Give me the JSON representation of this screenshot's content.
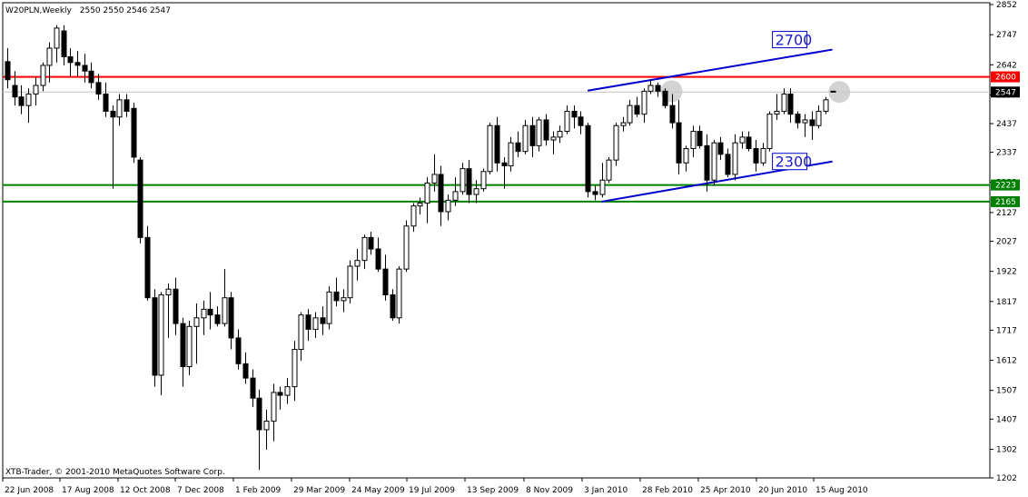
{
  "header": {
    "symbol_timeframe": "W20PLN,Weekly",
    "ohlc": "2550 2550 2546 2547"
  },
  "footer": {
    "copyright": "XTB-Trader, © 2001-2010 MetaQuotes Software Corp."
  },
  "colors": {
    "candle_outline": "#000000",
    "bull_fill": "#ffffff",
    "bear_fill": "#000000",
    "resistance_red": "#ff0000",
    "support_green": "#008000",
    "trendline_blue": "#0000cc",
    "label_blue": "#1a1acc",
    "current_price_line": "#c0c0c0",
    "highlight_circle": "#c8c8c8"
  },
  "chart_data": {
    "type": "candlestick",
    "ylim": [
      1202,
      2852
    ],
    "y_ticks": [
      2852,
      2747,
      2642,
      2537,
      2437,
      2337,
      2233,
      2127,
      2027,
      1922,
      1817,
      1717,
      1612,
      1507,
      1407,
      1302,
      1202
    ],
    "x_ticks": [
      "22 Jun 2008",
      "17 Aug 2008",
      "12 Oct 2008",
      "7 Dec 2008",
      "1 Feb 2009",
      "29 Mar 2009",
      "24 May 2009",
      "19 Jul 2009",
      "13 Sep 2009",
      "8 Nov 2009",
      "3 Jan 2010",
      "28 Feb 2010",
      "25 Apr 2010",
      "20 Jun 2010",
      "15 Aug 2010"
    ],
    "candles": [
      [
        2653,
        2700,
        2560,
        2590
      ],
      [
        2570,
        2620,
        2500,
        2530
      ],
      [
        2530,
        2570,
        2470,
        2500
      ],
      [
        2500,
        2560,
        2440,
        2540
      ],
      [
        2540,
        2600,
        2500,
        2570
      ],
      [
        2570,
        2650,
        2550,
        2640
      ],
      [
        2640,
        2720,
        2580,
        2700
      ],
      [
        2700,
        2780,
        2650,
        2770
      ],
      [
        2760,
        2780,
        2640,
        2670
      ],
      [
        2670,
        2700,
        2600,
        2650
      ],
      [
        2650,
        2690,
        2600,
        2640
      ],
      [
        2640,
        2680,
        2580,
        2620
      ],
      [
        2620,
        2650,
        2560,
        2580
      ],
      [
        2580,
        2610,
        2520,
        2540
      ],
      [
        2540,
        2580,
        2460,
        2480
      ],
      [
        2480,
        2500,
        2210,
        2460
      ],
      [
        2460,
        2540,
        2430,
        2520
      ],
      [
        2520,
        2540,
        2460,
        2480
      ],
      [
        2490,
        2510,
        2300,
        2320
      ],
      [
        2310,
        2320,
        2020,
        2040
      ],
      [
        2040,
        2080,
        1820,
        1830
      ],
      [
        1830,
        1860,
        1520,
        1560
      ],
      [
        1560,
        1850,
        1490,
        1840
      ],
      [
        1840,
        1880,
        1690,
        1860
      ],
      [
        1860,
        1900,
        1700,
        1740
      ],
      [
        1740,
        1760,
        1520,
        1590
      ],
      [
        1590,
        1750,
        1560,
        1730
      ],
      [
        1730,
        1810,
        1600,
        1760
      ],
      [
        1760,
        1820,
        1700,
        1790
      ],
      [
        1790,
        1850,
        1720,
        1770
      ],
      [
        1770,
        1800,
        1730,
        1740
      ],
      [
        1740,
        1930,
        1730,
        1830
      ],
      [
        1830,
        1850,
        1650,
        1690
      ],
      [
        1690,
        1720,
        1580,
        1600
      ],
      [
        1600,
        1640,
        1530,
        1550
      ],
      [
        1550,
        1580,
        1450,
        1480
      ],
      [
        1480,
        1510,
        1230,
        1370
      ],
      [
        1370,
        1440,
        1300,
        1400
      ],
      [
        1400,
        1530,
        1330,
        1500
      ],
      [
        1500,
        1520,
        1440,
        1490
      ],
      [
        1490,
        1550,
        1460,
        1520
      ],
      [
        1520,
        1680,
        1470,
        1650
      ],
      [
        1650,
        1780,
        1610,
        1770
      ],
      [
        1770,
        1790,
        1680,
        1720
      ],
      [
        1720,
        1780,
        1690,
        1760
      ],
      [
        1760,
        1800,
        1700,
        1740
      ],
      [
        1740,
        1870,
        1720,
        1850
      ],
      [
        1850,
        1900,
        1800,
        1820
      ],
      [
        1820,
        1860,
        1780,
        1830
      ],
      [
        1830,
        1960,
        1810,
        1940
      ],
      [
        1940,
        2000,
        1890,
        1960
      ],
      [
        1960,
        2050,
        1930,
        2040
      ],
      [
        2040,
        2060,
        1980,
        2000
      ],
      [
        2000,
        2040,
        1920,
        1930
      ],
      [
        1930,
        1980,
        1820,
        1840
      ],
      [
        1840,
        1860,
        1750,
        1760
      ],
      [
        1760,
        1940,
        1740,
        1930
      ],
      [
        1930,
        2100,
        1920,
        2080
      ],
      [
        2080,
        2160,
        2060,
        2150
      ],
      [
        2150,
        2180,
        2120,
        2160
      ],
      [
        2160,
        2250,
        2090,
        2230
      ],
      [
        2230,
        2330,
        2200,
        2260
      ],
      [
        2260,
        2290,
        2080,
        2130
      ],
      [
        2130,
        2190,
        2100,
        2170
      ],
      [
        2170,
        2250,
        2150,
        2200
      ],
      [
        2200,
        2300,
        2190,
        2280
      ],
      [
        2280,
        2310,
        2160,
        2190
      ],
      [
        2190,
        2240,
        2160,
        2210
      ],
      [
        2210,
        2280,
        2200,
        2270
      ],
      [
        2270,
        2440,
        2260,
        2430
      ],
      [
        2430,
        2460,
        2270,
        2300
      ],
      [
        2300,
        2320,
        2210,
        2290
      ],
      [
        2290,
        2390,
        2270,
        2370
      ],
      [
        2370,
        2410,
        2320,
        2340
      ],
      [
        2340,
        2450,
        2330,
        2430
      ],
      [
        2430,
        2460,
        2320,
        2360
      ],
      [
        2360,
        2460,
        2340,
        2450
      ],
      [
        2450,
        2470,
        2360,
        2380
      ],
      [
        2380,
        2410,
        2330,
        2390
      ],
      [
        2390,
        2430,
        2370,
        2410
      ],
      [
        2410,
        2500,
        2400,
        2480
      ],
      [
        2480,
        2500,
        2420,
        2460
      ],
      [
        2460,
        2480,
        2400,
        2430
      ],
      [
        2430,
        2440,
        2180,
        2200
      ],
      [
        2200,
        2220,
        2170,
        2190
      ],
      [
        2190,
        2300,
        2180,
        2240
      ],
      [
        2240,
        2320,
        2230,
        2310
      ],
      [
        2310,
        2440,
        2290,
        2430
      ],
      [
        2430,
        2460,
        2410,
        2440
      ],
      [
        2440,
        2520,
        2430,
        2500
      ],
      [
        2500,
        2530,
        2460,
        2470
      ],
      [
        2470,
        2560,
        2440,
        2550
      ],
      [
        2550,
        2590,
        2540,
        2570
      ],
      [
        2570,
        2580,
        2530,
        2550
      ],
      [
        2550,
        2560,
        2490,
        2500
      ],
      [
        2500,
        2540,
        2420,
        2440
      ],
      [
        2440,
        2520,
        2260,
        2300
      ],
      [
        2300,
        2360,
        2270,
        2350
      ],
      [
        2350,
        2430,
        2320,
        2410
      ],
      [
        2410,
        2430,
        2350,
        2360
      ],
      [
        2360,
        2400,
        2200,
        2240
      ],
      [
        2240,
        2380,
        2220,
        2370
      ],
      [
        2370,
        2390,
        2310,
        2330
      ],
      [
        2330,
        2350,
        2250,
        2260
      ],
      [
        2260,
        2400,
        2240,
        2370
      ],
      [
        2370,
        2410,
        2350,
        2390
      ],
      [
        2390,
        2410,
        2340,
        2350
      ],
      [
        2350,
        2380,
        2270,
        2300
      ],
      [
        2300,
        2370,
        2290,
        2350
      ],
      [
        2350,
        2480,
        2340,
        2470
      ],
      [
        2470,
        2540,
        2450,
        2480
      ],
      [
        2480,
        2560,
        2470,
        2540
      ],
      [
        2540,
        2560,
        2440,
        2470
      ],
      [
        2470,
        2480,
        2420,
        2440
      ],
      [
        2440,
        2470,
        2390,
        2450
      ],
      [
        2450,
        2480,
        2380,
        2430
      ],
      [
        2430,
        2500,
        2420,
        2480
      ],
      [
        2480,
        2530,
        2470,
        2520
      ],
      [
        2550,
        2550,
        2546,
        2547
      ]
    ],
    "horizontal_lines": [
      {
        "price": 2600,
        "label": "2600",
        "color": "#ff0000"
      },
      {
        "price": 2223,
        "label": "2223",
        "color": "#008000"
      },
      {
        "price": 2165,
        "label": "2165",
        "color": "#008000"
      }
    ],
    "current_price": {
      "price": 2547,
      "label": "2547"
    },
    "trendlines": [
      {
        "from": {
          "index": 83,
          "price": 2552
        },
        "to": {
          "index": 118,
          "price": 2695
        },
        "label": "2700"
      },
      {
        "from": {
          "index": 85,
          "price": 2165
        },
        "to": {
          "index": 118,
          "price": 2305
        },
        "label": "2300"
      }
    ],
    "highlights": [
      {
        "index": 95,
        "price": 2550
      },
      {
        "index": 119,
        "price": 2547
      }
    ]
  }
}
